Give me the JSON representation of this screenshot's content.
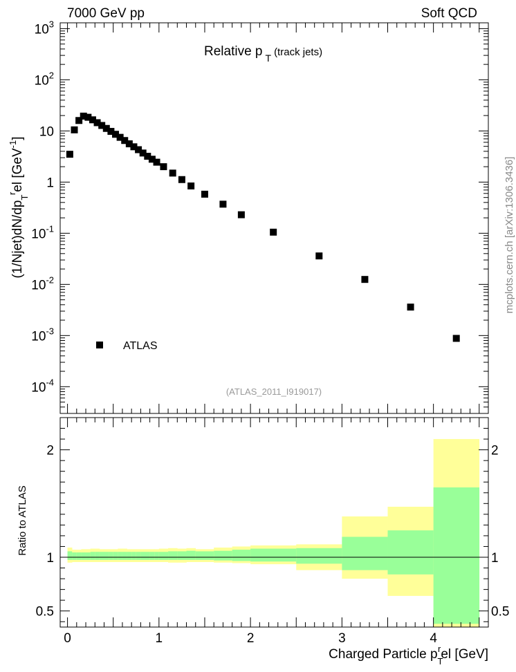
{
  "header": {
    "left": "7000 GeV pp",
    "right": "Soft QCD"
  },
  "side_label": "mcplots.cern.ch [arXiv:1306.3436]",
  "chart_data": [
    {
      "type": "scatter",
      "title_main": "Relative p",
      "title_sub": "T",
      "title_suffix": "(track jets)",
      "watermark": "(ATLAS_2011_I919017)",
      "ylabel": "(1/Njet)dN/dp T rel [GeV-1]",
      "ylabel_parts": {
        "a": "(1/Njet)dN/dp",
        "sub": "T",
        "sup": "r",
        "b": "el [GeV",
        "exp": "-1",
        "c": "]"
      },
      "yscale": "log",
      "ylim": [
        3e-05,
        1300
      ],
      "xlim": [
        -0.08,
        4.6
      ],
      "y_ticks": [
        {
          "v": 1000,
          "label": "10",
          "exp": "3"
        },
        {
          "v": 100,
          "label": "10",
          "exp": "2"
        },
        {
          "v": 10,
          "label": "10",
          "exp": ""
        },
        {
          "v": 1,
          "label": "1",
          "exp": ""
        },
        {
          "v": 0.1,
          "label": "10",
          "exp": "-1"
        },
        {
          "v": 0.01,
          "label": "10",
          "exp": "-2"
        },
        {
          "v": 0.001,
          "label": "10",
          "exp": "-3"
        },
        {
          "v": 0.0001,
          "label": "10",
          "exp": "-4"
        }
      ],
      "legend": {
        "label": "ATLAS",
        "position": "lower-left"
      },
      "series": [
        {
          "name": "ATLAS",
          "marker": "square",
          "color": "#000000",
          "x": [
            0.025,
            0.075,
            0.125,
            0.175,
            0.225,
            0.275,
            0.325,
            0.375,
            0.425,
            0.475,
            0.525,
            0.575,
            0.625,
            0.675,
            0.725,
            0.775,
            0.825,
            0.875,
            0.925,
            0.975,
            1.05,
            1.15,
            1.25,
            1.35,
            1.5,
            1.7,
            1.9,
            2.25,
            2.75,
            3.25,
            3.75,
            4.25
          ],
          "y": [
            3.5,
            10.5,
            16,
            19.5,
            18.5,
            16.5,
            14.5,
            12.8,
            11.2,
            9.8,
            8.6,
            7.5,
            6.5,
            5.6,
            4.9,
            4.3,
            3.7,
            3.2,
            2.8,
            2.45,
            2.0,
            1.5,
            1.12,
            0.84,
            0.58,
            0.37,
            0.23,
            0.105,
            0.036,
            0.0125,
            0.0036,
            0.00088
          ]
        }
      ]
    },
    {
      "type": "area",
      "ylabel": "Ratio to ATLAS",
      "xlabel": "Charged Particle p T rel [GeV]",
      "xlabel_parts": {
        "a": "Charged Particle p",
        "sub": "T",
        "sup": "r",
        "b": "el [GeV]"
      },
      "xlim": [
        -0.08,
        4.6
      ],
      "ylim": [
        0.35,
        2.3
      ],
      "x_ticks": [
        0,
        1,
        2,
        3,
        4
      ],
      "x_tick_labels": [
        "0",
        "1",
        "2",
        "3",
        "4"
      ],
      "y_ticks": [
        0.5,
        1,
        2
      ],
      "y_tick_labels": [
        "0.5",
        "1",
        "2"
      ],
      "reference_line": 1,
      "bands": {
        "colors": {
          "outer": "#ffff99",
          "inner": "#99ff99"
        },
        "edges": [
          0,
          0.05,
          0.1,
          0.15,
          0.2,
          0.25,
          0.3,
          0.35,
          0.4,
          0.45,
          0.5,
          0.55,
          0.6,
          0.65,
          0.7,
          0.75,
          0.8,
          0.85,
          0.9,
          0.95,
          1.0,
          1.1,
          1.2,
          1.3,
          1.4,
          1.6,
          1.8,
          2.0,
          2.5,
          3.0,
          3.5,
          4.0,
          4.5
        ],
        "outer_low": [
          0.95,
          0.955,
          0.955,
          0.955,
          0.955,
          0.955,
          0.955,
          0.955,
          0.955,
          0.955,
          0.955,
          0.955,
          0.955,
          0.955,
          0.955,
          0.955,
          0.955,
          0.955,
          0.955,
          0.955,
          0.955,
          0.95,
          0.95,
          0.955,
          0.955,
          0.95,
          0.945,
          0.935,
          0.88,
          0.8,
          0.64,
          0.35
        ],
        "outer_high": [
          1.09,
          1.07,
          1.07,
          1.075,
          1.075,
          1.08,
          1.08,
          1.075,
          1.075,
          1.075,
          1.075,
          1.08,
          1.08,
          1.075,
          1.075,
          1.075,
          1.075,
          1.075,
          1.075,
          1.075,
          1.08,
          1.085,
          1.08,
          1.085,
          1.075,
          1.09,
          1.1,
          1.11,
          1.12,
          1.38,
          1.47,
          2.1
        ],
        "inner_low": [
          0.975,
          0.975,
          0.975,
          0.975,
          0.975,
          0.975,
          0.975,
          0.975,
          0.975,
          0.975,
          0.975,
          0.975,
          0.975,
          0.975,
          0.975,
          0.975,
          0.975,
          0.975,
          0.975,
          0.975,
          0.975,
          0.975,
          0.975,
          0.975,
          0.975,
          0.97,
          0.965,
          0.96,
          0.94,
          0.88,
          0.84,
          0.38
        ],
        "inner_high": [
          1.055,
          1.045,
          1.045,
          1.045,
          1.045,
          1.05,
          1.05,
          1.05,
          1.05,
          1.05,
          1.05,
          1.05,
          1.05,
          1.05,
          1.05,
          1.05,
          1.05,
          1.05,
          1.05,
          1.05,
          1.05,
          1.055,
          1.055,
          1.06,
          1.055,
          1.06,
          1.07,
          1.08,
          1.085,
          1.19,
          1.25,
          1.65
        ]
      }
    }
  ]
}
